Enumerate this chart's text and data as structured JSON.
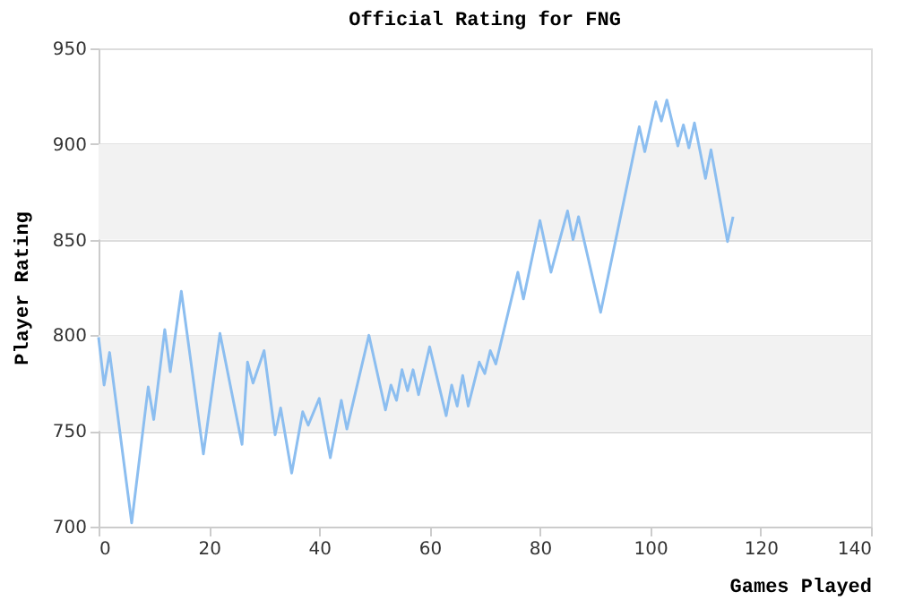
{
  "chart_data": {
    "type": "line",
    "title": "Official Rating for FNG",
    "xlabel": "Games Played",
    "ylabel": "Player Rating",
    "series": [
      {
        "color": "#8cbef0",
        "x": [
          0,
          1,
          2,
          6,
          9,
          10,
          12,
          13,
          15,
          19,
          22,
          26,
          27,
          28,
          30,
          32,
          33,
          35,
          37,
          38,
          40,
          42,
          44,
          45,
          49,
          52,
          53,
          54,
          55,
          56,
          57,
          58,
          60,
          63,
          64,
          65,
          66,
          67,
          69,
          70,
          71,
          72,
          76,
          77,
          80,
          82,
          85,
          86,
          87,
          91,
          98,
          99,
          101,
          102,
          103,
          105,
          106,
          107,
          108,
          110,
          111,
          114,
          115
        ],
        "values": [
          799,
          774,
          791,
          702,
          773,
          756,
          803,
          781,
          823,
          738,
          801,
          743,
          786,
          775,
          792,
          748,
          762,
          728,
          760,
          753,
          767,
          736,
          766,
          751,
          800,
          761,
          774,
          766,
          782,
          771,
          782,
          769,
          794,
          758,
          774,
          763,
          779,
          763,
          786,
          780,
          792,
          785,
          833,
          819,
          860,
          833,
          865,
          850,
          862,
          812,
          909,
          896,
          922,
          912,
          923,
          899,
          910,
          898,
          911,
          882,
          897,
          849,
          862
        ]
      }
    ],
    "xlim": [
      0,
      140
    ],
    "xticks": [
      0,
      20,
      40,
      60,
      80,
      100,
      120,
      140
    ],
    "ylim": [
      700,
      950
    ],
    "yticks": [
      700,
      750,
      800,
      850,
      900,
      950
    ],
    "grid": "y",
    "marker": "none",
    "line_style": "solid",
    "bands": [
      {
        "axis": "y",
        "from": 750,
        "to": 800,
        "color": "#f2f2f2"
      },
      {
        "axis": "y",
        "from": 850,
        "to": 900,
        "color": "#f2f2f2"
      }
    ]
  }
}
